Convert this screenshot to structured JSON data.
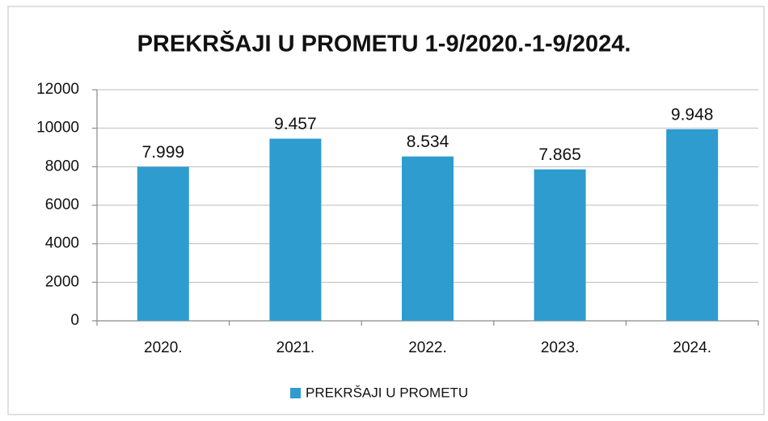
{
  "chart_data": {
    "type": "bar",
    "title": "PREKRŠAJI U PROMETU 1-9/2020.-1-9/2024.",
    "categories": [
      "2020.",
      "2021.",
      "2022.",
      "2023.",
      "2024."
    ],
    "series": [
      {
        "name": "PREKRŠAJI U PROMETU",
        "color": "#2e9ccf",
        "values": [
          7999,
          9457,
          8534,
          7865,
          9948
        ],
        "value_labels": [
          "7.999",
          "9.457",
          "8.534",
          "7.865",
          "9.948"
        ]
      }
    ],
    "ylim": [
      0,
      12000
    ],
    "yticks": [
      0,
      2000,
      4000,
      6000,
      8000,
      10000,
      12000
    ],
    "grid": true
  }
}
